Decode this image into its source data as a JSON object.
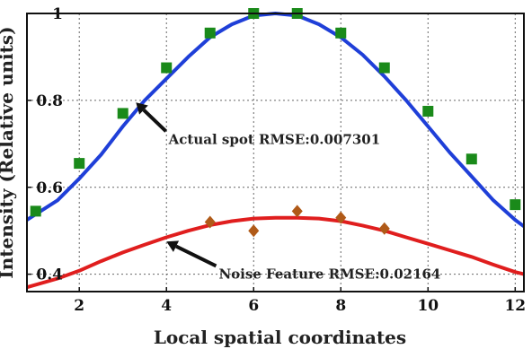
{
  "chart_data": {
    "type": "scatter",
    "xlabel": "Local spatial coordinates",
    "ylabel": "Intensity (Relative units)",
    "xlim": [
      0.8,
      12.2
    ],
    "ylim": [
      0.36,
      1.0
    ],
    "xticks": [
      2,
      4,
      6,
      8,
      10,
      12
    ],
    "yticks": [
      0.4,
      0.6,
      0.8,
      1
    ],
    "grid": true,
    "series": [
      {
        "kind": "points",
        "marker": "square",
        "color": "#1a8a1a",
        "x": [
          1,
          2,
          3,
          4,
          5,
          6,
          7,
          8,
          9,
          10,
          11,
          12
        ],
        "y": [
          0.545,
          0.655,
          0.77,
          0.875,
          0.955,
          1.0,
          1.0,
          0.955,
          0.875,
          0.775,
          0.665,
          0.56
        ]
      },
      {
        "kind": "curve",
        "color": "#1f3fd8",
        "x": [
          0.8,
          1.5,
          2,
          2.5,
          3,
          3.5,
          4,
          4.5,
          5,
          5.5,
          6,
          6.5,
          7,
          7.5,
          8,
          8.5,
          9,
          9.5,
          10,
          10.5,
          11,
          11.5,
          12,
          12.2
        ],
        "y": [
          0.525,
          0.57,
          0.62,
          0.675,
          0.74,
          0.8,
          0.85,
          0.9,
          0.945,
          0.975,
          0.995,
          1.0,
          0.995,
          0.975,
          0.945,
          0.905,
          0.855,
          0.8,
          0.74,
          0.68,
          0.625,
          0.57,
          0.525,
          0.51
        ]
      },
      {
        "kind": "points",
        "marker": "diamond",
        "color": "#b05a18",
        "x": [
          5,
          6,
          7,
          8,
          9
        ],
        "y": [
          0.52,
          0.5,
          0.545,
          0.53,
          0.505
        ]
      },
      {
        "kind": "curve",
        "color": "#e01e1e",
        "x": [
          0.8,
          1.5,
          2,
          2.5,
          3,
          3.5,
          4,
          4.5,
          5,
          5.5,
          6,
          6.5,
          7,
          7.5,
          8,
          8.5,
          9,
          9.5,
          10,
          10.5,
          11,
          11.5,
          12,
          12.2
        ],
        "y": [
          0.37,
          0.39,
          0.408,
          0.43,
          0.45,
          0.468,
          0.485,
          0.5,
          0.513,
          0.522,
          0.528,
          0.53,
          0.53,
          0.528,
          0.522,
          0.512,
          0.5,
          0.485,
          0.47,
          0.455,
          0.44,
          0.422,
          0.405,
          0.4
        ]
      }
    ],
    "annotations": [
      {
        "text": "Actual spot RMSE:0.007301",
        "x": 4.05,
        "y": 0.7,
        "arrow_to": [
          3.3,
          0.795
        ]
      },
      {
        "text": "Noise Feature RMSE:0.02164",
        "x": 5.2,
        "y": 0.39,
        "arrow_to": [
          4.0,
          0.475
        ]
      }
    ]
  }
}
